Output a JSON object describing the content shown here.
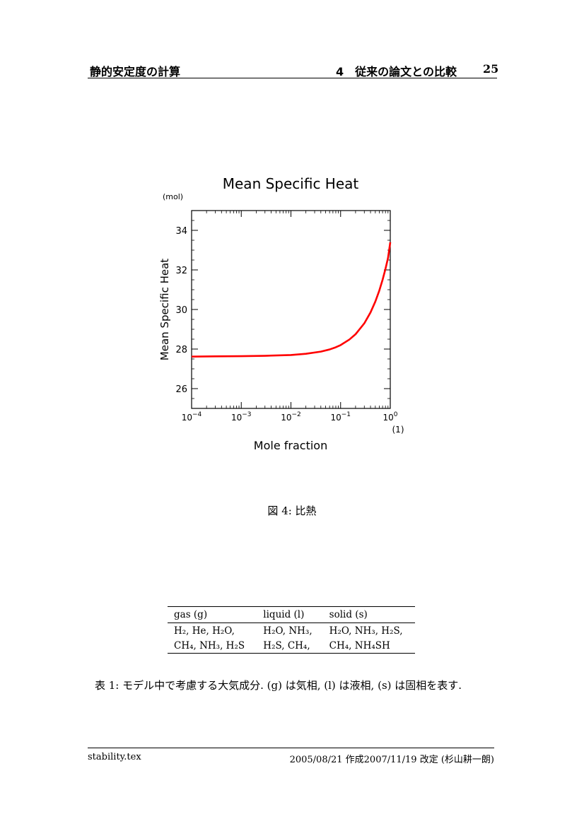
{
  "header": {
    "title": "静的安定度の計算",
    "section": "4　従来の論文との比較",
    "page_number": "25"
  },
  "chart_data": {
    "type": "line",
    "title": "Mean Specific Heat",
    "xlabel": "Mole fraction",
    "ylabel": "Mean Specific Heat",
    "x_unit": "(1)",
    "y_unit": "(mol)",
    "x_scale": "log",
    "xlim": [
      0.0001,
      1
    ],
    "ylim": [
      25,
      35
    ],
    "x_ticks": [
      0.0001,
      0.001,
      0.01,
      0.1,
      1
    ],
    "x_tick_bases": [
      "10",
      "10",
      "10",
      "10",
      "10"
    ],
    "x_tick_exps": [
      "−4",
      "−3",
      "−2",
      "−1",
      "0"
    ],
    "y_ticks": [
      26,
      28,
      30,
      32,
      34
    ],
    "y_tick_labels": [
      "26",
      "28",
      "30",
      "32",
      "34"
    ],
    "grid": false,
    "series": [
      {
        "color": "#ff0000",
        "x": [
          0.0001,
          0.0003,
          0.001,
          0.003,
          0.01,
          0.02,
          0.04,
          0.06,
          0.08,
          0.1,
          0.15,
          0.2,
          0.3,
          0.4,
          0.5,
          0.6,
          0.7,
          0.8,
          0.9,
          1.0
        ],
        "y": [
          27.62,
          27.63,
          27.64,
          27.66,
          27.7,
          27.76,
          27.87,
          27.98,
          28.09,
          28.2,
          28.48,
          28.75,
          29.3,
          29.85,
          30.4,
          30.95,
          31.5,
          32.05,
          32.6,
          33.4
        ]
      }
    ]
  },
  "figure_caption": "図 4: 比熱",
  "table": {
    "headers": [
      "gas (g)",
      "liquid (l)",
      "solid (s)"
    ],
    "rows": [
      [
        "H₂, He, H₂O,",
        "H₂O, NH₃,",
        "H₂O, NH₃, H₂S,"
      ],
      [
        "CH₄, NH₃, H₂S",
        "H₂S, CH₄,",
        "CH₄, NH₄SH"
      ]
    ]
  },
  "table_caption": "表 1: モデル中で考慮する大気成分. (g) は気相, (l) は液相, (s) は固相を表す.",
  "footer": {
    "filename": "stability.tex",
    "date": "2005/08/21 作成2007/11/19 改定 (杉山耕一朗)"
  }
}
